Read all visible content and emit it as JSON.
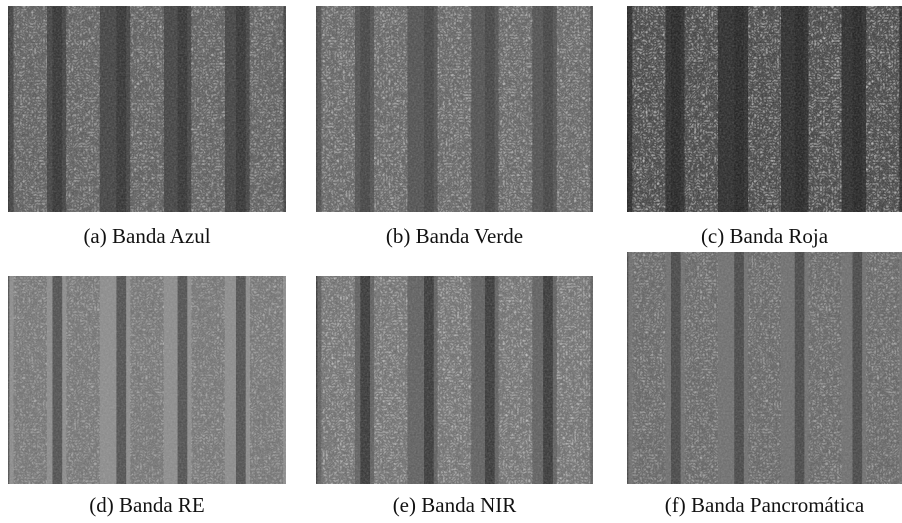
{
  "figure": {
    "panels": [
      {
        "caption": "(a) Banda Azul"
      },
      {
        "caption": "(b) Banda Verde"
      },
      {
        "caption": "(c) Banda Roja"
      },
      {
        "caption": "(d) Banda RE"
      },
      {
        "caption": "(e) Banda NIR"
      },
      {
        "caption": "(f) Banda Pancromática"
      }
    ]
  }
}
